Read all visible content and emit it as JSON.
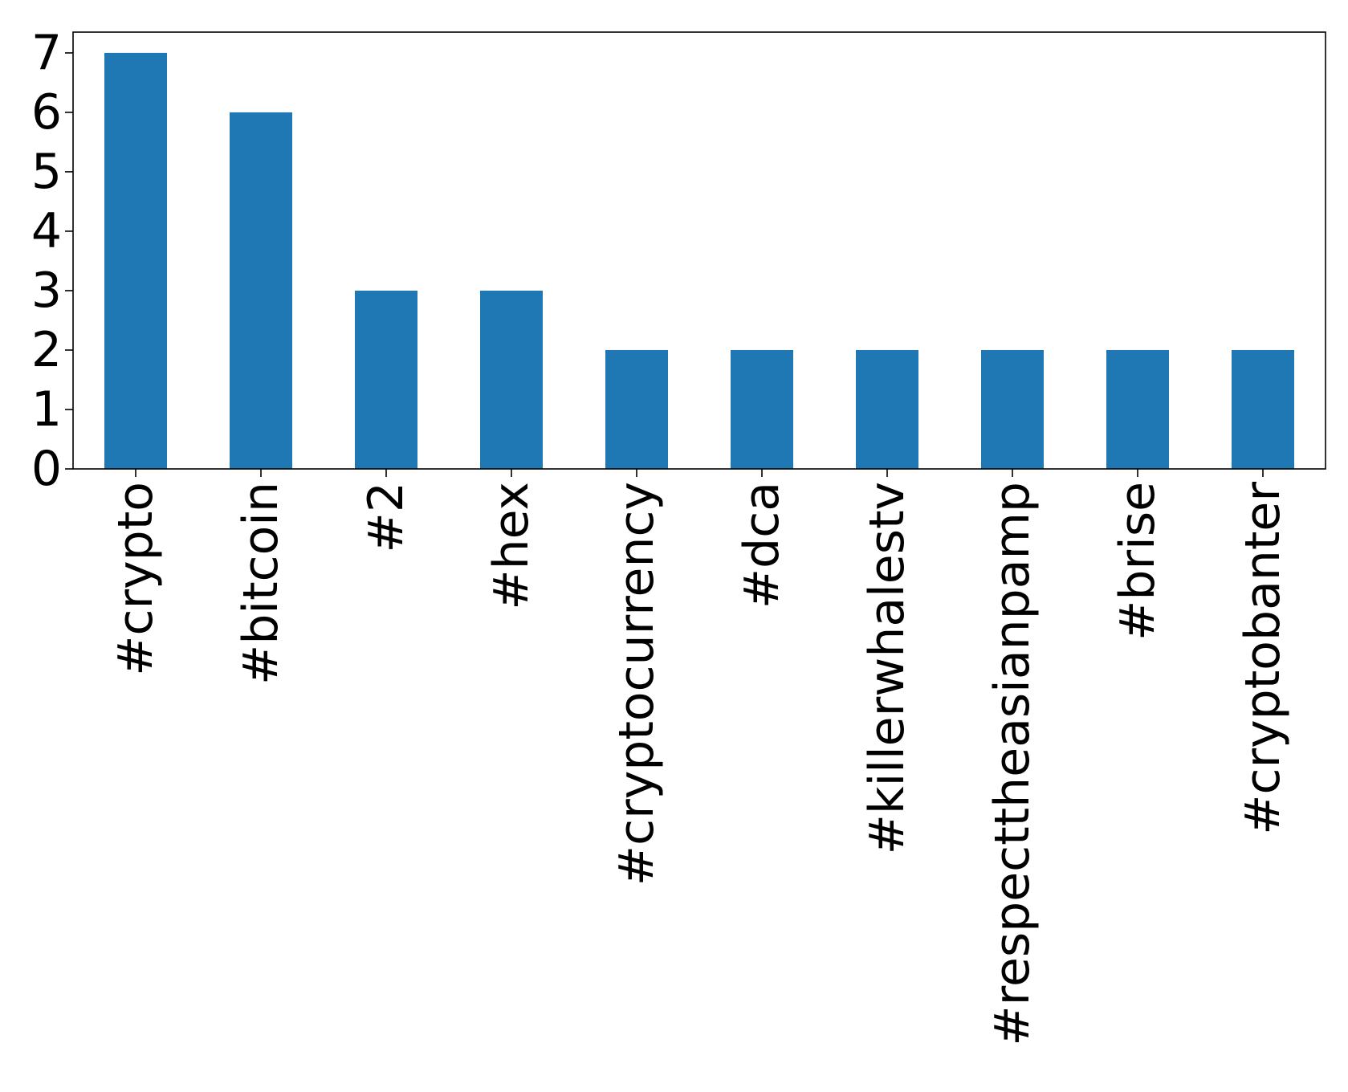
{
  "chart_data": {
    "type": "bar",
    "title": "",
    "xlabel": "",
    "ylabel": "",
    "categories": [
      "#crypto",
      "#bitcoin",
      "#2",
      "#hex",
      "#cryptocurrency",
      "#dca",
      "#killerwhalestv",
      "#respecttheasianpamp",
      "#brise",
      "#cryptobanter"
    ],
    "values": [
      7,
      6,
      3,
      3,
      2,
      2,
      2,
      2,
      2,
      2
    ],
    "ylim": [
      0,
      7.35
    ],
    "yticks": [
      "0",
      "1",
      "2",
      "3",
      "4",
      "5",
      "6",
      "7"
    ],
    "bar_color": "#1f77b4",
    "grid": false,
    "legend": "none"
  }
}
